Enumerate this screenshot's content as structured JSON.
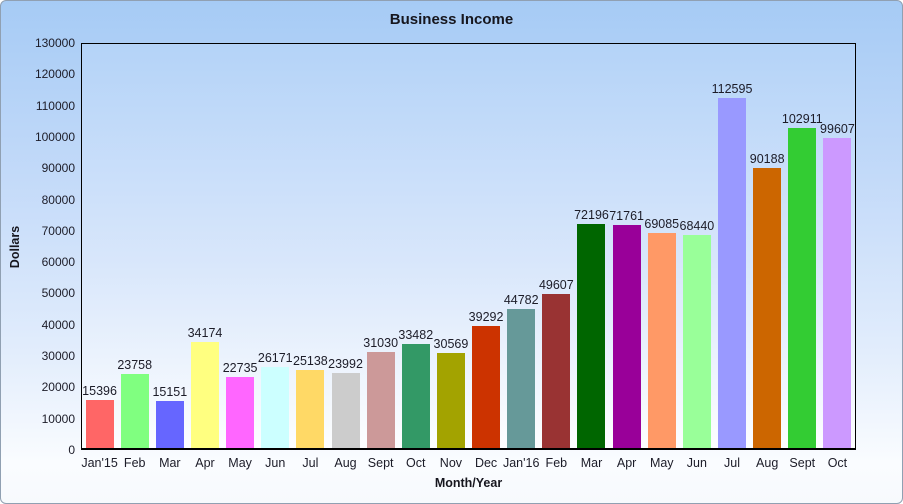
{
  "title": "Business Income",
  "chart_data": {
    "type": "bar",
    "title": "Business Income",
    "xlabel": "Month/Year",
    "ylabel": "Dollars",
    "ylim": [
      0,
      130000
    ],
    "ytick_step": 10000,
    "grid": false,
    "legend": "none",
    "value_labels_shown": true,
    "categories": [
      "Jan'15",
      "Feb",
      "Mar",
      "Apr",
      "May",
      "Jun",
      "Jul",
      "Aug",
      "Sept",
      "Oct",
      "Nov",
      "Dec",
      "Jan'16",
      "Feb",
      "Mar",
      "Apr",
      "May",
      "Jun",
      "Jul",
      "Aug",
      "Sept",
      "Oct"
    ],
    "values": [
      15396,
      23758,
      15151,
      34174,
      22735,
      26171,
      25138,
      23992,
      31030,
      33482,
      30569,
      39292,
      44782,
      49607,
      72196,
      71761,
      69085,
      68440,
      112595,
      90188,
      102911,
      99607
    ],
    "bar_colors": [
      "#FF6666",
      "#80FF80",
      "#6666FF",
      "#FFFF80",
      "#FF66FF",
      "#CCFFFF",
      "#FFD966",
      "#CCCCCC",
      "#CC9999",
      "#339966",
      "#A3A300",
      "#CC3300",
      "#669999",
      "#993333",
      "#006600",
      "#990099",
      "#FF9966",
      "#99FF99",
      "#9999FF",
      "#CC6600",
      "#33CC33",
      "#CC99FF"
    ]
  },
  "style": {
    "page_bg_top": "#A6CBF5",
    "page_bg_bottom": "#FAFCFF",
    "plot_bg_top": "#B4D3F8",
    "plot_bg_bottom": "#FDFEFF",
    "axis_line_color": "#000000",
    "text_color": "#1C1C28",
    "outer_border_color": "#90A0B2"
  }
}
